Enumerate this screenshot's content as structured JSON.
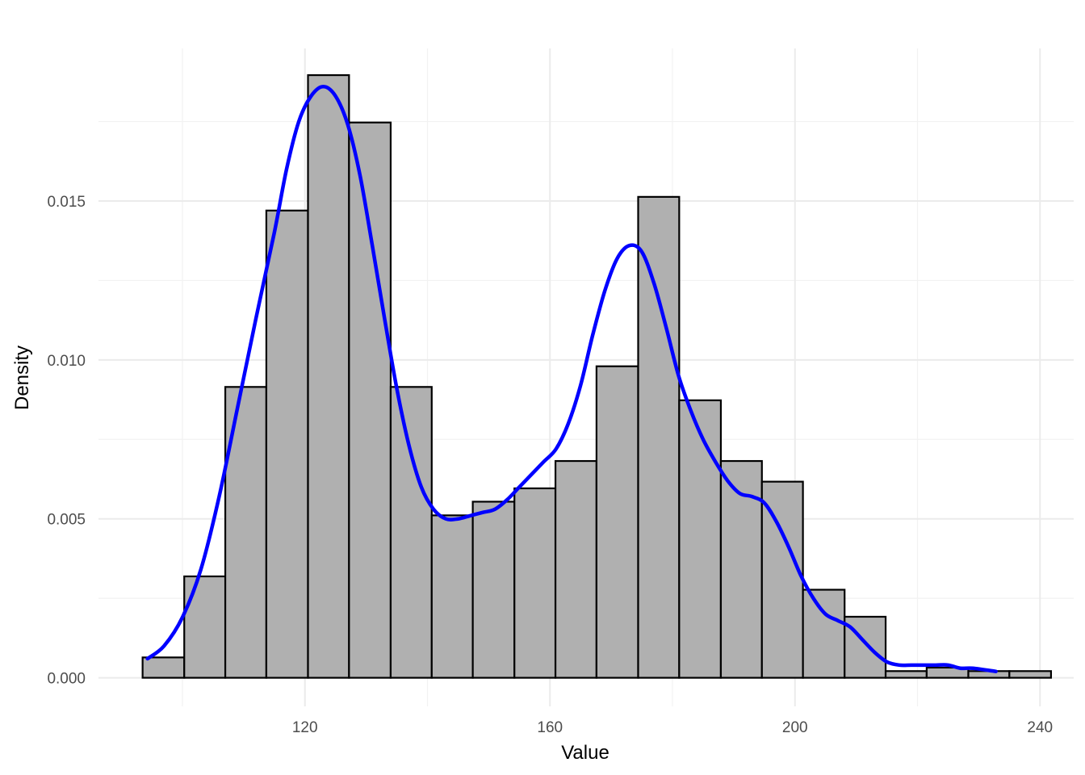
{
  "chart_data": {
    "type": "bar",
    "subtype": "histogram-with-density",
    "title": "",
    "xlabel": "Value",
    "ylabel": "Density",
    "xlim": [
      86.3,
      245.5
    ],
    "ylim": [
      -0.0009,
      0.0198
    ],
    "x_ticks": [
      {
        "value": 120,
        "label": "120"
      },
      {
        "value": 160,
        "label": "160"
      },
      {
        "value": 200,
        "label": "200"
      },
      {
        "value": 240,
        "label": "240"
      }
    ],
    "y_ticks": [
      {
        "value": 0.0,
        "label": "0.000"
      },
      {
        "value": 0.005,
        "label": "0.005"
      },
      {
        "value": 0.01,
        "label": "0.010"
      },
      {
        "value": 0.015,
        "label": "0.015"
      }
    ],
    "grid": true,
    "bins": [
      {
        "x0": 93.5,
        "x1": 100.3,
        "density": 0.00064
      },
      {
        "x0": 100.3,
        "x1": 107.0,
        "density": 0.00319
      },
      {
        "x0": 107.0,
        "x1": 113.7,
        "density": 0.00915
      },
      {
        "x0": 113.7,
        "x1": 120.5,
        "density": 0.0147
      },
      {
        "x0": 120.5,
        "x1": 127.2,
        "density": 0.01896
      },
      {
        "x0": 127.2,
        "x1": 134.0,
        "density": 0.01747
      },
      {
        "x0": 134.0,
        "x1": 140.7,
        "density": 0.00915
      },
      {
        "x0": 140.7,
        "x1": 147.4,
        "density": 0.00511
      },
      {
        "x0": 147.4,
        "x1": 154.2,
        "density": 0.00554
      },
      {
        "x0": 154.2,
        "x1": 160.9,
        "density": 0.00596
      },
      {
        "x0": 160.9,
        "x1": 167.6,
        "density": 0.00682
      },
      {
        "x0": 167.6,
        "x1": 174.4,
        "density": 0.0098
      },
      {
        "x0": 174.4,
        "x1": 181.1,
        "density": 0.01513
      },
      {
        "x0": 181.1,
        "x1": 187.9,
        "density": 0.00873
      },
      {
        "x0": 187.9,
        "x1": 194.6,
        "density": 0.00682
      },
      {
        "x0": 194.6,
        "x1": 201.3,
        "density": 0.00617
      },
      {
        "x0": 201.3,
        "x1": 208.1,
        "density": 0.00277
      },
      {
        "x0": 208.1,
        "x1": 214.8,
        "density": 0.00192
      },
      {
        "x0": 214.8,
        "x1": 221.5,
        "density": 0.00021
      },
      {
        "x0": 221.5,
        "x1": 228.3,
        "density": 0.00032
      },
      {
        "x0": 228.3,
        "x1": 235.0,
        "density": 0.00021
      },
      {
        "x0": 235.0,
        "x1": 241.8,
        "density": 0.00021
      }
    ],
    "density_curve": {
      "color": "#0000ff",
      "points": [
        [
          94.3,
          0.0006
        ],
        [
          97,
          0.001
        ],
        [
          100,
          0.0019
        ],
        [
          103,
          0.0034
        ],
        [
          106,
          0.0057
        ],
        [
          109,
          0.0085
        ],
        [
          112,
          0.0113
        ],
        [
          115,
          0.014
        ],
        [
          117,
          0.016
        ],
        [
          119,
          0.0175
        ],
        [
          121,
          0.0183
        ],
        [
          123,
          0.0186
        ],
        [
          125,
          0.0183
        ],
        [
          127,
          0.0174
        ],
        [
          129,
          0.0158
        ],
        [
          131,
          0.0136
        ],
        [
          133,
          0.0113
        ],
        [
          135,
          0.0091
        ],
        [
          137,
          0.0073
        ],
        [
          139,
          0.006
        ],
        [
          141,
          0.0053
        ],
        [
          143,
          0.005
        ],
        [
          145,
          0.005
        ],
        [
          147,
          0.0051
        ],
        [
          149,
          0.0052
        ],
        [
          151,
          0.0053
        ],
        [
          153,
          0.0056
        ],
        [
          155,
          0.006
        ],
        [
          157,
          0.0064
        ],
        [
          159,
          0.0068
        ],
        [
          161,
          0.0072
        ],
        [
          163,
          0.008
        ],
        [
          165,
          0.0092
        ],
        [
          167,
          0.0108
        ],
        [
          169,
          0.0122
        ],
        [
          171,
          0.0132
        ],
        [
          173,
          0.0136
        ],
        [
          175,
          0.0134
        ],
        [
          177,
          0.0124
        ],
        [
          179,
          0.011
        ],
        [
          181,
          0.0095
        ],
        [
          183,
          0.0084
        ],
        [
          185,
          0.0075
        ],
        [
          187,
          0.0068
        ],
        [
          189,
          0.0062
        ],
        [
          191,
          0.0058
        ],
        [
          193,
          0.0057
        ],
        [
          195,
          0.0055
        ],
        [
          197,
          0.0049
        ],
        [
          199,
          0.0041
        ],
        [
          201,
          0.0032
        ],
        [
          203,
          0.0025
        ],
        [
          205,
          0.002
        ],
        [
          207,
          0.0018
        ],
        [
          209,
          0.0016
        ],
        [
          211,
          0.0012
        ],
        [
          213,
          0.0008
        ],
        [
          215,
          0.0005
        ],
        [
          217,
          0.0004
        ],
        [
          219,
          0.0004
        ],
        [
          221,
          0.0004
        ],
        [
          223,
          0.0004
        ],
        [
          225,
          0.0004
        ],
        [
          227,
          0.0003
        ],
        [
          229,
          0.0003
        ],
        [
          232.8,
          0.0002
        ]
      ]
    }
  }
}
